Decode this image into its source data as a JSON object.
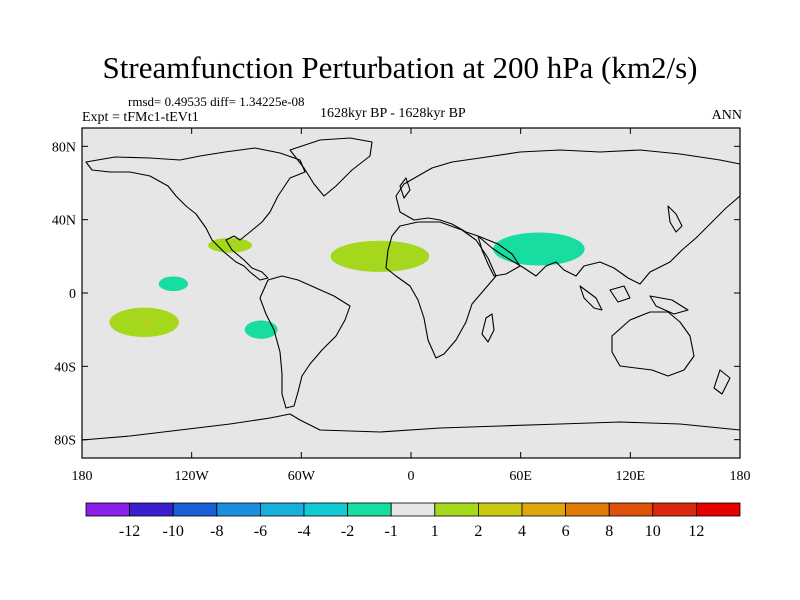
{
  "chart_data": {
    "type": "heatmap",
    "title": "Streamfunction Perturbation at 200 hPa (km2/s)",
    "rmsd_line": "rmsd= 0.49535 diff= 1.34225e-08",
    "left_subtitle": "Expt = tFMc1-tEVt1",
    "center_subtitle": "1628kyr BP - 1628kyr BP",
    "right_subtitle": "ANN",
    "xlim": [
      -180,
      180
    ],
    "ylim": [
      -90,
      90
    ],
    "x_ticks": [
      {
        "value": -180,
        "label": "180"
      },
      {
        "value": -120,
        "label": "120W"
      },
      {
        "value": -60,
        "label": "60W"
      },
      {
        "value": 0,
        "label": "0"
      },
      {
        "value": 60,
        "label": "60E"
      },
      {
        "value": 120,
        "label": "120E"
      },
      {
        "value": 180,
        "label": "180"
      }
    ],
    "y_ticks": [
      {
        "value": 80,
        "label": "80N"
      },
      {
        "value": 40,
        "label": "40N"
      },
      {
        "value": 0,
        "label": "0"
      },
      {
        "value": -40,
        "label": "40S"
      },
      {
        "value": -80,
        "label": "80S"
      }
    ],
    "background_level_color": "#e6e6e6",
    "colorbar": {
      "levels": [
        "-12",
        "-10",
        "-8",
        "-6",
        "-4",
        "-2",
        "-1",
        "1",
        "2",
        "4",
        "6",
        "8",
        "10",
        "12"
      ],
      "colors": [
        "#8a1fe6",
        "#3b1fcf",
        "#1a5fd9",
        "#1a8fe0",
        "#17b0dd",
        "#12cbd2",
        "#17dea0",
        "#e6e6e6",
        "#a5d81d",
        "#c9c813",
        "#dca60c",
        "#e07b0a",
        "#e0510a",
        "#d9290e",
        "#e60000"
      ]
    },
    "anomaly_regions": [
      {
        "name": "north-africa-atlantic-positive",
        "lon": -17,
        "lat": 20,
        "dlon": 27,
        "dlat": 8.5,
        "color": "#a5d81d"
      },
      {
        "name": "gulf-of-mexico-positive",
        "lon": -99,
        "lat": 26,
        "dlon": 12,
        "dlat": 4,
        "color": "#a5d81d"
      },
      {
        "name": "south-pacific-positive",
        "lon": -146,
        "lat": -16,
        "dlon": 19,
        "dlat": 8,
        "color": "#a5d81d"
      },
      {
        "name": "south-pacific-core-positive",
        "lon": -145,
        "lat": -17,
        "dlon": 2,
        "dlat": 1,
        "color": "#c9c813"
      },
      {
        "name": "south-asia-negative",
        "lon": 70,
        "lat": 24,
        "dlon": 25,
        "dlat": 9,
        "color": "#17dea0"
      },
      {
        "name": "central-pacific-negative",
        "lon": -130,
        "lat": 5,
        "dlon": 8,
        "dlat": 4,
        "color": "#17dea0"
      },
      {
        "name": "southeast-pacific-negative",
        "lon": -82,
        "lat": -20,
        "dlon": 9,
        "dlat": 5,
        "color": "#17dea0"
      }
    ]
  }
}
